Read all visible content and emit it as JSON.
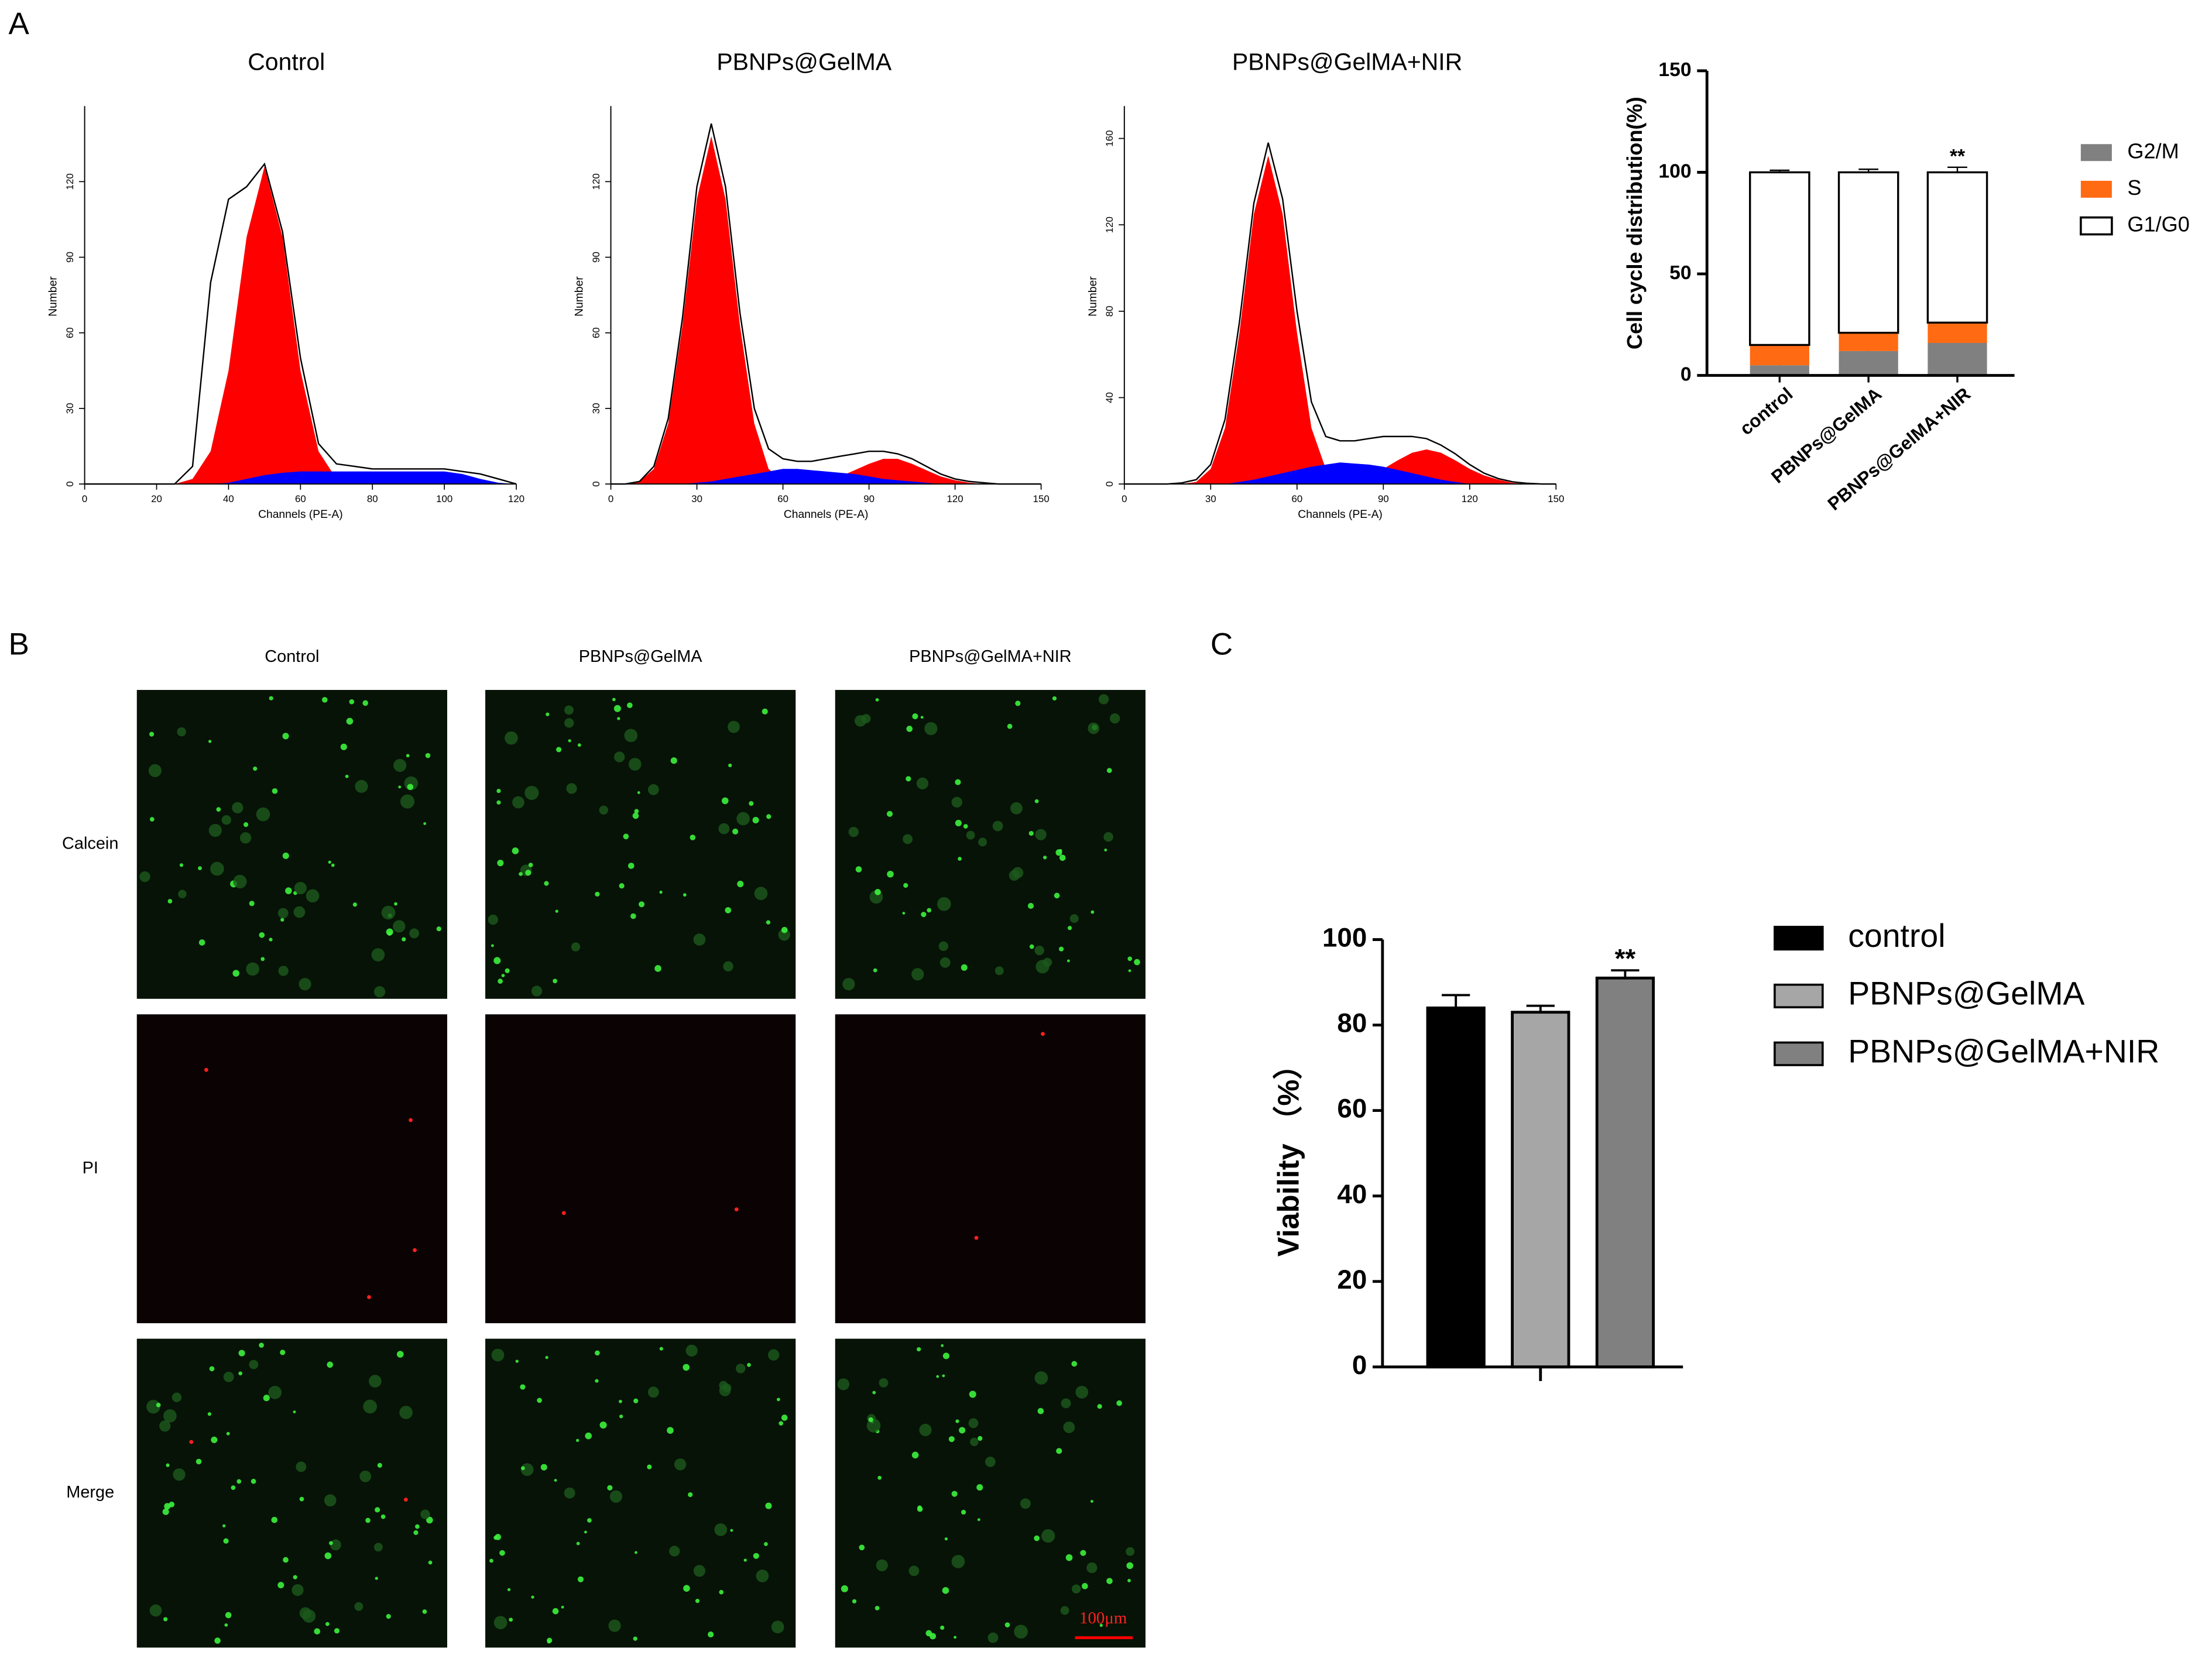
{
  "panel_labels": [
    "A",
    "B",
    "C"
  ],
  "chart_data": [
    {
      "type": "area",
      "title": "Control",
      "xlabel": "Channels (PE-A)",
      "ylabel": "Number",
      "x": [
        0,
        5,
        10,
        15,
        20,
        25,
        30,
        35,
        40,
        45,
        50,
        55,
        60,
        65,
        70,
        75,
        80,
        85,
        90,
        95,
        100,
        105,
        110,
        115,
        120
      ],
      "xlim": [
        0,
        120
      ],
      "xticks": [
        0,
        20,
        40,
        60,
        80,
        100,
        120
      ],
      "ylim": [
        0,
        150
      ],
      "yticks": [
        0,
        30,
        60,
        90,
        120
      ],
      "series": [
        {
          "color": "#ff0000",
          "style": "fill",
          "values": [
            0,
            0,
            0,
            0,
            0,
            0,
            2,
            13,
            45,
            98,
            126,
            98,
            45,
            13,
            2,
            0,
            0,
            0,
            0,
            0,
            0,
            0,
            0,
            0,
            0
          ]
        },
        {
          "color": "#0000ff",
          "style": "fill",
          "values": [
            0,
            0,
            0,
            0,
            0,
            0,
            0,
            0,
            0.5,
            2,
            3.5,
            4.5,
            5,
            5,
            5,
            5,
            5,
            5,
            5,
            5,
            5,
            4,
            2,
            0.5,
            0
          ]
        },
        {
          "color": "#000000",
          "style": "line",
          "values": [
            0,
            0,
            0,
            0,
            0,
            0,
            7,
            80,
            113,
            118,
            127,
            100,
            50,
            16,
            8,
            7,
            6,
            6,
            6,
            6,
            6,
            5,
            4,
            2,
            0
          ]
        }
      ]
    },
    {
      "type": "area",
      "title": "PBNPs@GelMA",
      "xlabel": "Channels (PE-A)",
      "ylabel": "Number",
      "x": [
        0,
        5,
        10,
        15,
        20,
        25,
        30,
        35,
        40,
        45,
        50,
        55,
        60,
        65,
        70,
        75,
        80,
        85,
        90,
        95,
        100,
        105,
        110,
        115,
        120,
        125,
        130,
        135,
        140,
        145,
        150
      ],
      "xlim": [
        0,
        150
      ],
      "xticks": [
        0,
        30,
        60,
        90,
        120,
        150
      ],
      "ylim": [
        0,
        150
      ],
      "yticks": [
        0,
        30,
        60,
        90,
        120
      ],
      "series": [
        {
          "color": "#ff0000",
          "style": "fill",
          "values": [
            0,
            0,
            1,
            6,
            24,
            63,
            113,
            138,
            113,
            63,
            24,
            6,
            1,
            0,
            0,
            0,
            0,
            0,
            0,
            0,
            0,
            0,
            0,
            0,
            0,
            0,
            0,
            0,
            0,
            0,
            0
          ]
        },
        {
          "color": "#ff0000",
          "style": "fill",
          "values": [
            0,
            0,
            0,
            0,
            0,
            0,
            0,
            0,
            0,
            0,
            0,
            0,
            0,
            0,
            0,
            1,
            3,
            5.5,
            8,
            10,
            10,
            8,
            5.5,
            3,
            1.5,
            0.5,
            0,
            0,
            0,
            0,
            0
          ]
        },
        {
          "color": "#0000ff",
          "style": "fill",
          "values": [
            0,
            0,
            0,
            0,
            0,
            0,
            0.5,
            1,
            2,
            3,
            4,
            5,
            6,
            6,
            5.5,
            5,
            4.5,
            4,
            3,
            2,
            1.5,
            1,
            0.5,
            0,
            0,
            0,
            0,
            0,
            0,
            0,
            0
          ]
        },
        {
          "color": "#000000",
          "style": "line",
          "values": [
            0,
            0,
            1,
            7,
            26,
            66,
            118,
            143,
            118,
            68,
            30,
            14,
            10,
            9,
            9,
            10,
            11,
            12,
            13,
            13,
            12,
            10,
            7,
            4,
            2,
            1,
            0.5,
            0,
            0,
            0,
            0
          ]
        }
      ]
    },
    {
      "type": "area",
      "title": "PBNPs@GelMA+NIR",
      "xlabel": "Channels (PE-A)",
      "ylabel": "Number",
      "x": [
        0,
        5,
        10,
        15,
        20,
        25,
        30,
        35,
        40,
        45,
        50,
        55,
        60,
        65,
        70,
        75,
        80,
        85,
        90,
        95,
        100,
        105,
        110,
        115,
        120,
        125,
        130,
        135,
        140,
        145,
        150
      ],
      "xlim": [
        0,
        150
      ],
      "xticks": [
        0,
        30,
        60,
        90,
        120,
        150
      ],
      "ylim": [
        0,
        175
      ],
      "yticks": [
        0,
        40,
        80,
        120,
        160
      ],
      "series": [
        {
          "color": "#ff0000",
          "style": "fill",
          "values": [
            0,
            0,
            0,
            0,
            0,
            1,
            7,
            26,
            70,
            125,
            152,
            125,
            70,
            26,
            7,
            1,
            0,
            0,
            0,
            0,
            0,
            0,
            0,
            0,
            0,
            0,
            0,
            0,
            0,
            0,
            0
          ]
        },
        {
          "color": "#ff0000",
          "style": "fill",
          "values": [
            0,
            0,
            0,
            0,
            0,
            0,
            0,
            0,
            0,
            0,
            0,
            0,
            0,
            0,
            0,
            0,
            2,
            4,
            7,
            11,
            14.5,
            16,
            14.5,
            11,
            7,
            4,
            2,
            0.5,
            0,
            0,
            0
          ]
        },
        {
          "color": "#0000ff",
          "style": "fill",
          "values": [
            0,
            0,
            0,
            0,
            0,
            0,
            0,
            0,
            1,
            2,
            3.5,
            5,
            6.5,
            8,
            9,
            10,
            9.5,
            9,
            8,
            6.5,
            5,
            3.5,
            2,
            1,
            0,
            0,
            0,
            0,
            0,
            0,
            0
          ]
        },
        {
          "color": "#000000",
          "style": "line",
          "values": [
            0,
            0,
            0,
            0,
            0.5,
            2,
            9,
            30,
            75,
            130,
            158,
            132,
            80,
            38,
            22,
            20,
            20,
            21,
            22,
            22,
            22,
            21,
            18,
            14,
            9,
            5,
            2.5,
            1,
            0.3,
            0,
            0
          ]
        }
      ]
    },
    {
      "type": "bar",
      "stacked": true,
      "ylabel": "Cell cycle distribution(%)",
      "categories": [
        "control",
        "PBNPs@GelMA",
        "PBNPs@GelMA+NIR"
      ],
      "ylim": [
        0,
        150
      ],
      "yticks": [
        0,
        50,
        100,
        150
      ],
      "legend": "right",
      "annotations": [
        "**"
      ],
      "series": [
        {
          "name": "G2/M",
          "color": "#808080",
          "values": [
            5,
            12,
            16
          ],
          "errors": [
            0.5,
            0.8,
            0.8
          ]
        },
        {
          "name": "S",
          "color": "#ff6a13",
          "values": [
            10,
            9,
            10
          ],
          "errors": [
            1,
            1,
            1
          ]
        },
        {
          "name": "G1/G0",
          "color": "#ffffff",
          "values": [
            85,
            79,
            74
          ],
          "errors": [
            1,
            1.5,
            2.5
          ]
        }
      ]
    },
    {
      "type": "bar",
      "stacked": false,
      "ylabel": "Viability （%）",
      "categories": [
        null
      ],
      "ylim": [
        0,
        100
      ],
      "yticks": [
        0,
        20,
        40,
        60,
        80,
        100
      ],
      "legend": "right",
      "annotations": [
        "**"
      ],
      "series": [
        {
          "name": "control",
          "color": "#000000",
          "values": [
            84
          ],
          "errors": [
            3
          ]
        },
        {
          "name": "PBNPs@GelMA",
          "color": "#a6a6a6",
          "values": [
            83
          ],
          "errors": [
            1.5
          ]
        },
        {
          "name": "PBNPs@GelMA+NIR",
          "color": "#808080",
          "values": [
            91
          ],
          "errors": [
            1.8
          ]
        }
      ]
    }
  ],
  "images": {
    "columns": [
      "Control",
      "PBNPs@GelMA",
      "PBNPs@GelMA+NIR"
    ],
    "rows": [
      "Calcein",
      "PI",
      "Merge"
    ],
    "scale_bar": "100μm"
  }
}
